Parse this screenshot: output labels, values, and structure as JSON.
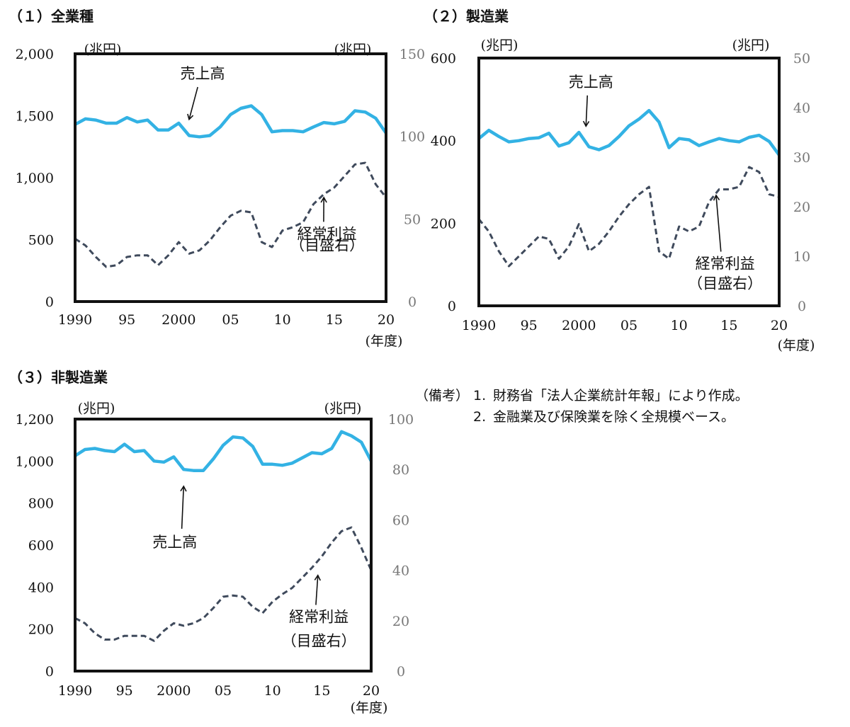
{
  "chart_data": [
    {
      "type": "line",
      "title": "（１）全業種",
      "left_unit": "(兆円)",
      "right_unit": "(兆円)",
      "x_unit": "(年度)",
      "x": [
        1990,
        1991,
        1992,
        1993,
        1994,
        1995,
        1996,
        1997,
        1998,
        1999,
        2000,
        2001,
        2002,
        2003,
        2004,
        2005,
        2006,
        2007,
        2008,
        2009,
        2010,
        2011,
        2012,
        2013,
        2014,
        2015,
        2016,
        2017,
        2018,
        2019,
        2020
      ],
      "x_ticks": [
        1990,
        1995,
        2000,
        2005,
        2010,
        2015,
        2020
      ],
      "x_tick_labels": [
        "1990",
        "95",
        "2000",
        "05",
        "10",
        "15",
        "20"
      ],
      "ylim_left": [
        0,
        2000
      ],
      "ylim_right": [
        0,
        150
      ],
      "left_ticks": [
        0,
        500,
        1000,
        1500,
        2000
      ],
      "left_tick_labels": [
        "0",
        "500",
        "1,000",
        "1,500",
        "2,000"
      ],
      "right_ticks": [
        0,
        50,
        100,
        150
      ],
      "right_tick_labels": [
        "0",
        "50",
        "100",
        "150"
      ],
      "series": [
        {
          "name": "売上高",
          "axis": "left",
          "style": "solid",
          "color": "#33b2e4",
          "values": [
            1430,
            1475,
            1465,
            1440,
            1440,
            1485,
            1450,
            1465,
            1385,
            1385,
            1440,
            1340,
            1330,
            1340,
            1410,
            1510,
            1560,
            1580,
            1510,
            1370,
            1380,
            1380,
            1370,
            1410,
            1445,
            1435,
            1455,
            1540,
            1530,
            1480,
            1360
          ]
        },
        {
          "name": "経常利益",
          "axis": "right",
          "style": "dashed",
          "color": "#3f4a5c",
          "values": [
            38,
            34,
            27,
            21,
            22,
            27,
            28,
            28,
            22,
            28,
            36,
            29,
            31,
            37,
            45,
            52,
            55,
            54,
            36,
            33,
            43,
            45,
            48,
            59,
            65,
            69,
            76,
            83,
            84,
            71,
            63
          ]
        }
      ],
      "annotations": [
        {
          "text": "売上高",
          "x": 2002.3,
          "y_left": 1800,
          "arrow_to_x": 2001,
          "arrow_to_y_left": 1470
        },
        {
          "text": "経常利益",
          "text2": "（目盛右）",
          "x": 2014.3,
          "y_right": 38,
          "y_right2": 31,
          "arrow_to_x": 2014,
          "arrow_to_y_right": 63
        }
      ]
    },
    {
      "type": "line",
      "title": "（２）製造業",
      "left_unit": "(兆円)",
      "right_unit": "(兆円)",
      "x_unit": "(年度)",
      "x": [
        1990,
        1991,
        1992,
        1993,
        1994,
        1995,
        1996,
        1997,
        1998,
        1999,
        2000,
        2001,
        2002,
        2003,
        2004,
        2005,
        2006,
        2007,
        2008,
        2009,
        2010,
        2011,
        2012,
        2013,
        2014,
        2015,
        2016,
        2017,
        2018,
        2019,
        2020
      ],
      "x_ticks": [
        1990,
        1995,
        2000,
        2005,
        2010,
        2015,
        2020
      ],
      "x_tick_labels": [
        "1990",
        "95",
        "2000",
        "05",
        "10",
        "15",
        "20"
      ],
      "ylim_left": [
        0,
        600
      ],
      "ylim_right": [
        0,
        50
      ],
      "left_ticks": [
        0,
        200,
        400,
        600
      ],
      "left_tick_labels": [
        "0",
        "200",
        "400",
        "600"
      ],
      "right_ticks": [
        0,
        10,
        20,
        30,
        40,
        50
      ],
      "right_tick_labels": [
        "0",
        "10",
        "20",
        "30",
        "40",
        "50"
      ],
      "series": [
        {
          "name": "売上高",
          "axis": "left",
          "style": "solid",
          "color": "#33b2e4",
          "values": [
            405,
            425,
            410,
            397,
            400,
            405,
            407,
            418,
            387,
            395,
            420,
            385,
            378,
            388,
            410,
            436,
            452,
            473,
            445,
            383,
            405,
            402,
            388,
            397,
            405,
            400,
            397,
            408,
            413,
            398,
            365
          ]
        },
        {
          "name": "経常利益",
          "axis": "right",
          "style": "dashed",
          "color": "#3f4a5c",
          "values": [
            17.5,
            15,
            11,
            8,
            10,
            12,
            14,
            13.5,
            9.5,
            12,
            16.5,
            11,
            12.5,
            15,
            18,
            20.5,
            22.5,
            24,
            11,
            9.5,
            16,
            15,
            16,
            21,
            23.5,
            23.5,
            24,
            28,
            27,
            22.5,
            22
          ]
        }
      ],
      "annotations": [
        {
          "text": "売上高",
          "x": 2001.2,
          "y_left": 530,
          "arrow_to_x": 2000.7,
          "arrow_to_y_left": 435
        },
        {
          "text": "経常利益",
          "text2": "（目盛右）",
          "x": 2014.6,
          "y_right": 7.5,
          "y_right2": 3.5,
          "arrow_to_x": 2013.7,
          "arrow_to_y_right": 22.3
        }
      ]
    },
    {
      "type": "line",
      "title": "（３）非製造業",
      "left_unit": "(兆円)",
      "right_unit": "(兆円)",
      "x_unit": "(年度)",
      "x": [
        1990,
        1991,
        1992,
        1993,
        1994,
        1995,
        1996,
        1997,
        1998,
        1999,
        2000,
        2001,
        2002,
        2003,
        2004,
        2005,
        2006,
        2007,
        2008,
        2009,
        2010,
        2011,
        2012,
        2013,
        2014,
        2015,
        2016,
        2017,
        2018,
        2019,
        2020
      ],
      "x_ticks": [
        1990,
        1995,
        2000,
        2005,
        2010,
        2015,
        2020
      ],
      "x_tick_labels": [
        "1990",
        "95",
        "2000",
        "05",
        "10",
        "15",
        "20"
      ],
      "ylim_left": [
        0,
        1200
      ],
      "ylim_right": [
        0,
        100
      ],
      "left_ticks": [
        0,
        200,
        400,
        600,
        800,
        1000,
        1200
      ],
      "left_tick_labels": [
        "0",
        "200",
        "400",
        "600",
        "800",
        "1,000",
        "1,200"
      ],
      "right_ticks": [
        0,
        20,
        40,
        60,
        80,
        100
      ],
      "right_tick_labels": [
        "0",
        "20",
        "40",
        "60",
        "80",
        "100"
      ],
      "series": [
        {
          "name": "売上高",
          "axis": "left",
          "style": "solid",
          "color": "#33b2e4",
          "values": [
            1025,
            1055,
            1060,
            1050,
            1045,
            1080,
            1045,
            1050,
            1000,
            995,
            1020,
            960,
            955,
            955,
            1010,
            1075,
            1115,
            1110,
            1070,
            985,
            985,
            980,
            990,
            1015,
            1040,
            1035,
            1060,
            1140,
            1120,
            1090,
            1000
          ]
        },
        {
          "name": "経常利益",
          "axis": "right",
          "style": "dashed",
          "color": "#3f4a5c",
          "values": [
            21,
            19,
            15,
            12.5,
            12.5,
            14,
            14,
            14,
            12,
            16,
            19,
            18,
            19,
            21,
            25,
            29.5,
            30,
            29.5,
            25.5,
            23,
            27.5,
            30.5,
            33,
            37,
            41,
            45.5,
            51,
            55.5,
            57,
            49,
            40
          ]
        }
      ],
      "annotations": [
        {
          "text": "売上高",
          "x": 2000.1,
          "y_left": 590,
          "arrow_to_x": 2001,
          "arrow_to_y_left": 880
        },
        {
          "text": "経常利益",
          "text2": "（目盛右）",
          "x": 2014.7,
          "y_right": 19.5,
          "y_right2": 10,
          "arrow_to_x": 2014.6,
          "arrow_to_y_right": 38
        }
      ]
    }
  ],
  "notes": {
    "label": "（備考）",
    "items": [
      {
        "num": "1.",
        "text": "財務省「法人企業統計年報」により作成。"
      },
      {
        "num": "2.",
        "text": "金融業及び保険業を除く全規模ベース。"
      }
    ]
  }
}
